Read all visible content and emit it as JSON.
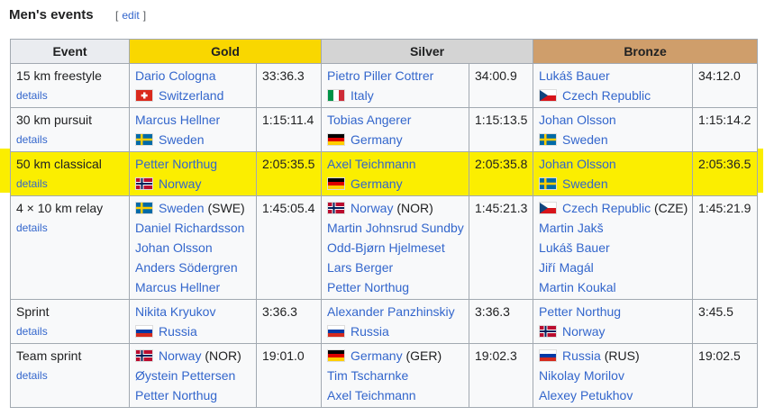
{
  "header": {
    "title": "Men's events",
    "edit": [
      "[",
      "edit",
      "]"
    ]
  },
  "table": {
    "columns": [
      "Event",
      "Gold",
      "Silver",
      "Bronze"
    ],
    "column_colors": [
      "#eaecf0",
      "#f9d700",
      "#d4d4d4",
      "#cf9e6b"
    ],
    "highlight_color": "#fbee00",
    "flags": {
      "Switzerland": [
        "swiss",
        "#da291c",
        "#ffffff"
      ],
      "Italy": [
        "v3",
        "#009246",
        "#ffffff",
        "#ce2b37"
      ],
      "Czech Republic": [
        "czech",
        "#ffffff",
        "#d7141a",
        "#11457e"
      ],
      "Sweden": [
        "cross",
        "#006aa7",
        "#fecc00"
      ],
      "Germany": [
        "h3",
        "#000000",
        "#dd0000",
        "#ffce00"
      ],
      "Norway": [
        "nordic",
        "#ba0c2f",
        "#ffffff",
        "#00205b"
      ],
      "Russia": [
        "h3",
        "#ffffff",
        "#0039a6",
        "#d52b1e"
      ]
    },
    "rows": [
      {
        "event": "15 km freestyle",
        "details": "details",
        "medals": [
          {
            "athlete": "Dario Cologna",
            "country": "Switzerland",
            "time": "33:36.3"
          },
          {
            "athlete": "Pietro Piller Cottrer",
            "country": "Italy",
            "time": "34:00.9"
          },
          {
            "athlete": "Lukáš Bauer",
            "country": "Czech Republic",
            "time": "34:12.0"
          }
        ]
      },
      {
        "event": "30 km pursuit",
        "details": "details",
        "medals": [
          {
            "athlete": "Marcus Hellner",
            "country": "Sweden",
            "time": "1:15:11.4"
          },
          {
            "athlete": "Tobias Angerer",
            "country": "Germany",
            "time": "1:15:13.5"
          },
          {
            "athlete": "Johan Olsson",
            "country": "Sweden",
            "time": "1:15:14.2"
          }
        ]
      },
      {
        "event": "50 km classical",
        "details": "details",
        "medals": [
          {
            "athlete": "Petter Northug",
            "country": "Norway",
            "time": "2:05:35.5"
          },
          {
            "athlete": "Axel Teichmann",
            "country": "Germany",
            "time": "2:05:35.8"
          },
          {
            "athlete": "Johan Olsson",
            "country": "Sweden",
            "time": "2:05:36.5"
          }
        ]
      },
      {
        "event": "4 × 10 km relay",
        "details": "details",
        "medals": [
          {
            "country": "Sweden",
            "code": "(SWE)",
            "time": "1:45:05.4",
            "members": [
              "Daniel Richardsson",
              "Johan Olsson",
              "Anders Södergren",
              "Marcus Hellner"
            ]
          },
          {
            "country": "Norway",
            "code": "(NOR)",
            "time": "1:45:21.3",
            "members": [
              "Martin Johnsrud Sundby",
              "Odd-Bjørn Hjelmeset",
              "Lars Berger",
              "Petter Northug"
            ]
          },
          {
            "country": "Czech Republic",
            "code": "(CZE)",
            "time": "1:45:21.9",
            "members": [
              "Martin Jakš",
              "Lukáš Bauer",
              "Jiří Magál",
              "Martin Koukal"
            ]
          }
        ]
      },
      {
        "event": "Sprint",
        "details": "details",
        "medals": [
          {
            "athlete": "Nikita Kryukov",
            "country": "Russia",
            "time": "3:36.3"
          },
          {
            "athlete": "Alexander Panzhinskiy",
            "country": "Russia",
            "time": "3:36.3"
          },
          {
            "athlete": "Petter Northug",
            "country": "Norway",
            "time": "3:45.5"
          }
        ]
      },
      {
        "event": "Team sprint",
        "details": "details",
        "medals": [
          {
            "country": "Norway",
            "code": "(NOR)",
            "time": "19:01.0",
            "members": [
              "Øystein Pettersen",
              "Petter Northug"
            ]
          },
          {
            "country": "Germany",
            "code": "(GER)",
            "time": "19:02.3",
            "members": [
              "Tim Tscharnke",
              "Axel Teichmann"
            ]
          },
          {
            "country": "Russia",
            "code": "(RUS)",
            "time": "19:02.5",
            "members": [
              "Nikolay Morilov",
              "Alexey Petukhov"
            ]
          }
        ]
      }
    ]
  }
}
